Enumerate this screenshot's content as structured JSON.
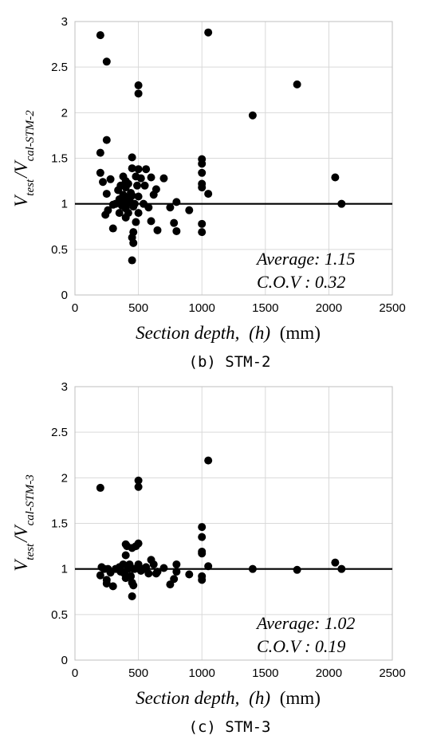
{
  "chart_data": [
    {
      "type": "scatter",
      "caption": "(b) STM-2",
      "xlabel": {
        "main": "Section depth,",
        "var": "(h)",
        "unit": "(mm)"
      },
      "ylabel": {
        "v1": "V",
        "s1": "test",
        "sep": "/",
        "v2": "V",
        "s2": "cal-STM-2"
      },
      "xlim": [
        0,
        2500
      ],
      "ylim": [
        0,
        3
      ],
      "xticks": [
        0,
        500,
        1000,
        1500,
        2000,
        2500
      ],
      "yticks": [
        0,
        0.5,
        1,
        1.5,
        2,
        2.5,
        3
      ],
      "xtick_labels": [
        "0",
        "500",
        "1000",
        "1500",
        "2000",
        "2500"
      ],
      "ytick_labels": [
        "0",
        "0.5",
        "1",
        "1.5",
        "2",
        "2.5",
        "3"
      ],
      "grid": true,
      "reference_line": 1.0,
      "annotations": [
        "Average: 1.15",
        "C.O.V : 0.32"
      ],
      "x": [
        200,
        250,
        500,
        500,
        1050,
        1400,
        1750,
        2050,
        2100,
        200,
        250,
        200,
        220,
        240,
        250,
        260,
        280,
        300,
        300,
        320,
        340,
        350,
        350,
        360,
        370,
        380,
        380,
        390,
        400,
        400,
        400,
        400,
        400,
        410,
        420,
        420,
        430,
        440,
        450,
        450,
        450,
        450,
        460,
        460,
        470,
        480,
        480,
        490,
        500,
        500,
        500,
        520,
        540,
        550,
        560,
        580,
        600,
        600,
        620,
        640,
        650,
        700,
        750,
        780,
        800,
        800,
        900,
        1000,
        1000,
        1000,
        1000,
        1000,
        1000,
        1000,
        1050,
        450,
        450,
        460
      ],
      "y": [
        2.85,
        2.56,
        2.3,
        2.21,
        2.88,
        1.97,
        2.31,
        1.29,
        1.0,
        1.56,
        1.7,
        1.34,
        1.24,
        0.88,
        1.11,
        0.93,
        1.27,
        0.99,
        0.73,
        1.0,
        1.15,
        1.05,
        0.9,
        1.2,
        0.98,
        1.1,
        1.3,
        1.08,
        1.25,
        1.02,
        0.95,
        0.85,
        1.18,
        1.0,
        0.9,
        1.22,
        1.05,
        1.12,
        1.51,
        1.39,
        0.63,
        0.38,
        0.69,
        0.57,
        1.0,
        1.3,
        0.8,
        1.2,
        1.38,
        1.08,
        0.9,
        1.28,
        1.0,
        1.2,
        1.38,
        0.96,
        1.29,
        0.81,
        1.1,
        1.16,
        0.71,
        1.28,
        0.96,
        0.79,
        1.02,
        0.7,
        0.93,
        1.49,
        1.44,
        1.34,
        1.18,
        1.22,
        0.78,
        0.69,
        1.11,
        1.0,
        1.09,
        0.97
      ]
    },
    {
      "type": "scatter",
      "caption": "(c) STM-3",
      "xlabel": {
        "main": "Section depth,",
        "var": "(h)",
        "unit": "(mm)"
      },
      "ylabel": {
        "v1": "V",
        "s1": "test",
        "sep": "/",
        "v2": "V",
        "s2": "cal-STM-3"
      },
      "xlim": [
        0,
        2500
      ],
      "ylim": [
        0,
        3
      ],
      "xticks": [
        0,
        500,
        1000,
        1500,
        2000,
        2500
      ],
      "yticks": [
        0,
        0.5,
        1,
        1.5,
        2,
        2.5,
        3
      ],
      "xtick_labels": [
        "0",
        "500",
        "1000",
        "1500",
        "2000",
        "2500"
      ],
      "ytick_labels": [
        "0",
        "0.5",
        "1",
        "1.5",
        "2",
        "2.5",
        "3"
      ],
      "grid": true,
      "reference_line": 1.0,
      "annotations": [
        "Average: 1.02",
        "C.O.V : 0.19"
      ],
      "x": [
        200,
        500,
        500,
        1050,
        1400,
        1750,
        2050,
        2100,
        200,
        210,
        230,
        250,
        250,
        260,
        280,
        300,
        320,
        350,
        360,
        380,
        390,
        400,
        400,
        400,
        410,
        420,
        430,
        440,
        450,
        450,
        450,
        460,
        460,
        470,
        480,
        500,
        500,
        520,
        540,
        560,
        580,
        600,
        620,
        640,
        650,
        700,
        750,
        780,
        800,
        800,
        900,
        1000,
        1000,
        1000,
        1000,
        1000,
        1000,
        1050
      ],
      "y": [
        1.89,
        1.97,
        1.9,
        2.19,
        1.0,
        0.99,
        1.07,
        1.0,
        0.93,
        1.02,
        1.0,
        0.88,
        0.84,
        1.0,
        0.96,
        0.81,
        1.0,
        1.02,
        0.97,
        1.05,
        0.95,
        1.27,
        1.15,
        0.9,
        1.25,
        1.0,
        1.05,
        0.92,
        1.23,
        0.85,
        0.7,
        1.0,
        0.82,
        1.0,
        1.25,
        1.28,
        1.05,
        0.98,
        1.0,
        1.02,
        0.95,
        1.1,
        1.05,
        0.95,
        0.97,
        1.01,
        0.83,
        0.89,
        1.05,
        0.97,
        0.94,
        1.46,
        1.35,
        1.19,
        1.17,
        0.92,
        0.88,
        1.03
      ]
    }
  ]
}
